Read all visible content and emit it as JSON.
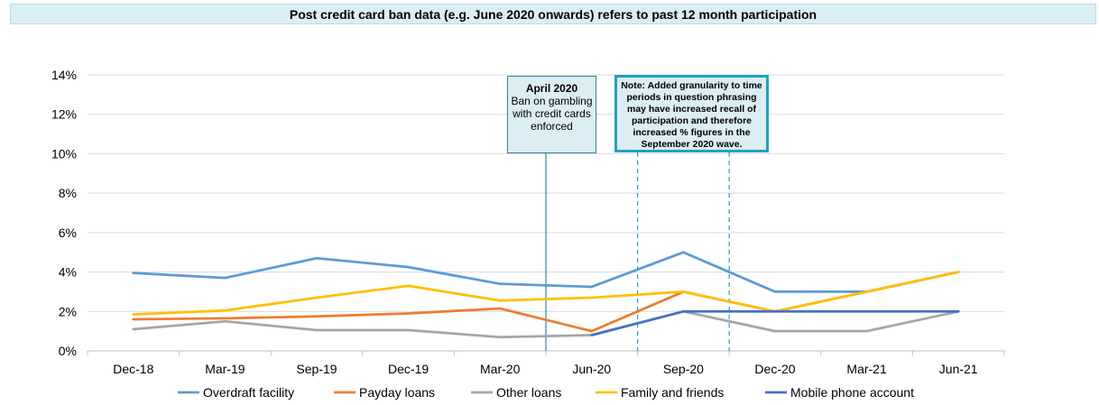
{
  "header": {
    "banner": "Post credit card ban data (e.g. June 2020 onwards) refers to past 12 month participation"
  },
  "annotations": {
    "ban_note_title": "April 2020",
    "ban_note_body": "Ban on gambling with credit cards enforced",
    "granularity_note": "Note: Added granularity to time periods in question phrasing may have increased recall of participation and therefore increased % figures in the September 2020 wave."
  },
  "chart_data": {
    "type": "line",
    "title": "",
    "xlabel": "",
    "ylabel": "",
    "categories": [
      "Dec-18",
      "Mar-19",
      "Sep-19",
      "Dec-19",
      "Mar-20",
      "Jun-20",
      "Sep-20",
      "Dec-20",
      "Mar-21",
      "Jun-21"
    ],
    "ylim": [
      0,
      14
    ],
    "yticks": [
      0,
      2,
      4,
      6,
      8,
      10,
      12,
      14
    ],
    "ytick_labels": [
      "0%",
      "2%",
      "4%",
      "6%",
      "8%",
      "10%",
      "12%",
      "14%"
    ],
    "grid": "horizontal",
    "legend_position": "bottom",
    "series": [
      {
        "name": "Overdraft facility",
        "color": "#5b9bd5",
        "values": [
          3.95,
          3.7,
          4.7,
          4.25,
          3.4,
          3.25,
          5.0,
          3.0,
          3.0,
          4.0
        ]
      },
      {
        "name": "Payday loans",
        "color": "#ed7d31",
        "values": [
          1.6,
          1.65,
          1.75,
          1.9,
          2.15,
          1.0,
          3.0,
          2.0,
          3.0,
          4.0
        ]
      },
      {
        "name": "Other loans",
        "color": "#a5a5a5",
        "values": [
          1.1,
          1.5,
          1.05,
          1.05,
          0.7,
          0.8,
          2.0,
          1.0,
          1.0,
          2.0
        ]
      },
      {
        "name": "Family and friends",
        "color": "#ffc000",
        "values": [
          1.85,
          2.05,
          2.7,
          3.3,
          2.55,
          2.7,
          3.0,
          2.0,
          3.0,
          4.0
        ]
      },
      {
        "name": "Mobile phone account",
        "color": "#4472c4",
        "values": [
          null,
          null,
          null,
          null,
          null,
          0.8,
          2.0,
          2.0,
          2.0,
          2.0
        ]
      }
    ],
    "reference_lines": [
      {
        "label": "April 2020",
        "position_between": [
          "Mar-20",
          "Jun-20"
        ],
        "style": "solid"
      },
      {
        "position_between": [
          "Jun-20",
          "Sep-20"
        ],
        "style": "dashed"
      },
      {
        "position_between": [
          "Sep-20",
          "Dec-20"
        ],
        "style": "dashed"
      }
    ]
  }
}
